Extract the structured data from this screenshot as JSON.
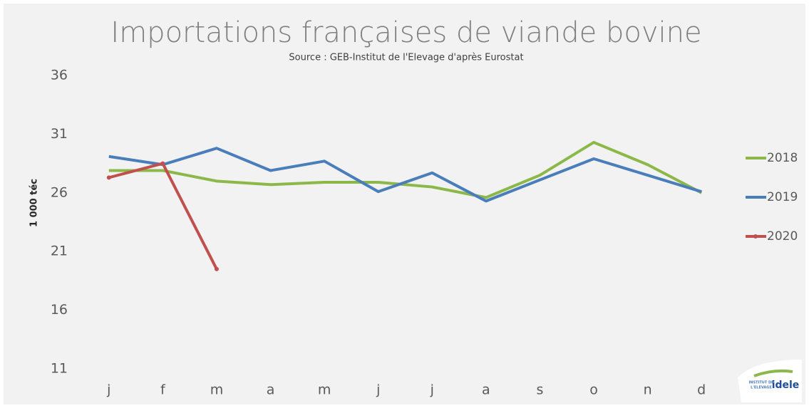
{
  "chart_data": {
    "type": "line",
    "title": "Importations françaises de viande bovine",
    "subtitle": "Source : GEB-Institut de l'Elevage d'après Eurostat",
    "y_label": "1 000 téc",
    "categories": [
      "j",
      "f",
      "m",
      "a",
      "m",
      "j",
      "j",
      "a",
      "s",
      "o",
      "n",
      "d"
    ],
    "series": [
      {
        "name": "2018",
        "color": "#8cb84a",
        "values": [
          27.9,
          27.9,
          27.0,
          26.7,
          26.9,
          26.9,
          26.5,
          25.6,
          27.5,
          30.3,
          28.4,
          26.0
        ]
      },
      {
        "name": "2019",
        "color": "#4a7ebb",
        "values": [
          29.1,
          28.4,
          29.8,
          27.9,
          28.7,
          26.1,
          27.7,
          25.3,
          27.1,
          28.9,
          27.5,
          26.1
        ]
      },
      {
        "name": "2020",
        "color": "#c0504d",
        "marker": true,
        "values": [
          27.3,
          28.5,
          19.5,
          null,
          null,
          null,
          null,
          null,
          null,
          null,
          null,
          null
        ]
      }
    ],
    "ylim": [
      11,
      36
    ],
    "yticks": [
      11,
      16,
      21,
      26,
      31,
      36
    ],
    "grid": false,
    "legend": "right",
    "logo": {
      "line1": "INSTITUT DE",
      "line2": "L'ELEVAGE",
      "brand": "idele"
    }
  }
}
